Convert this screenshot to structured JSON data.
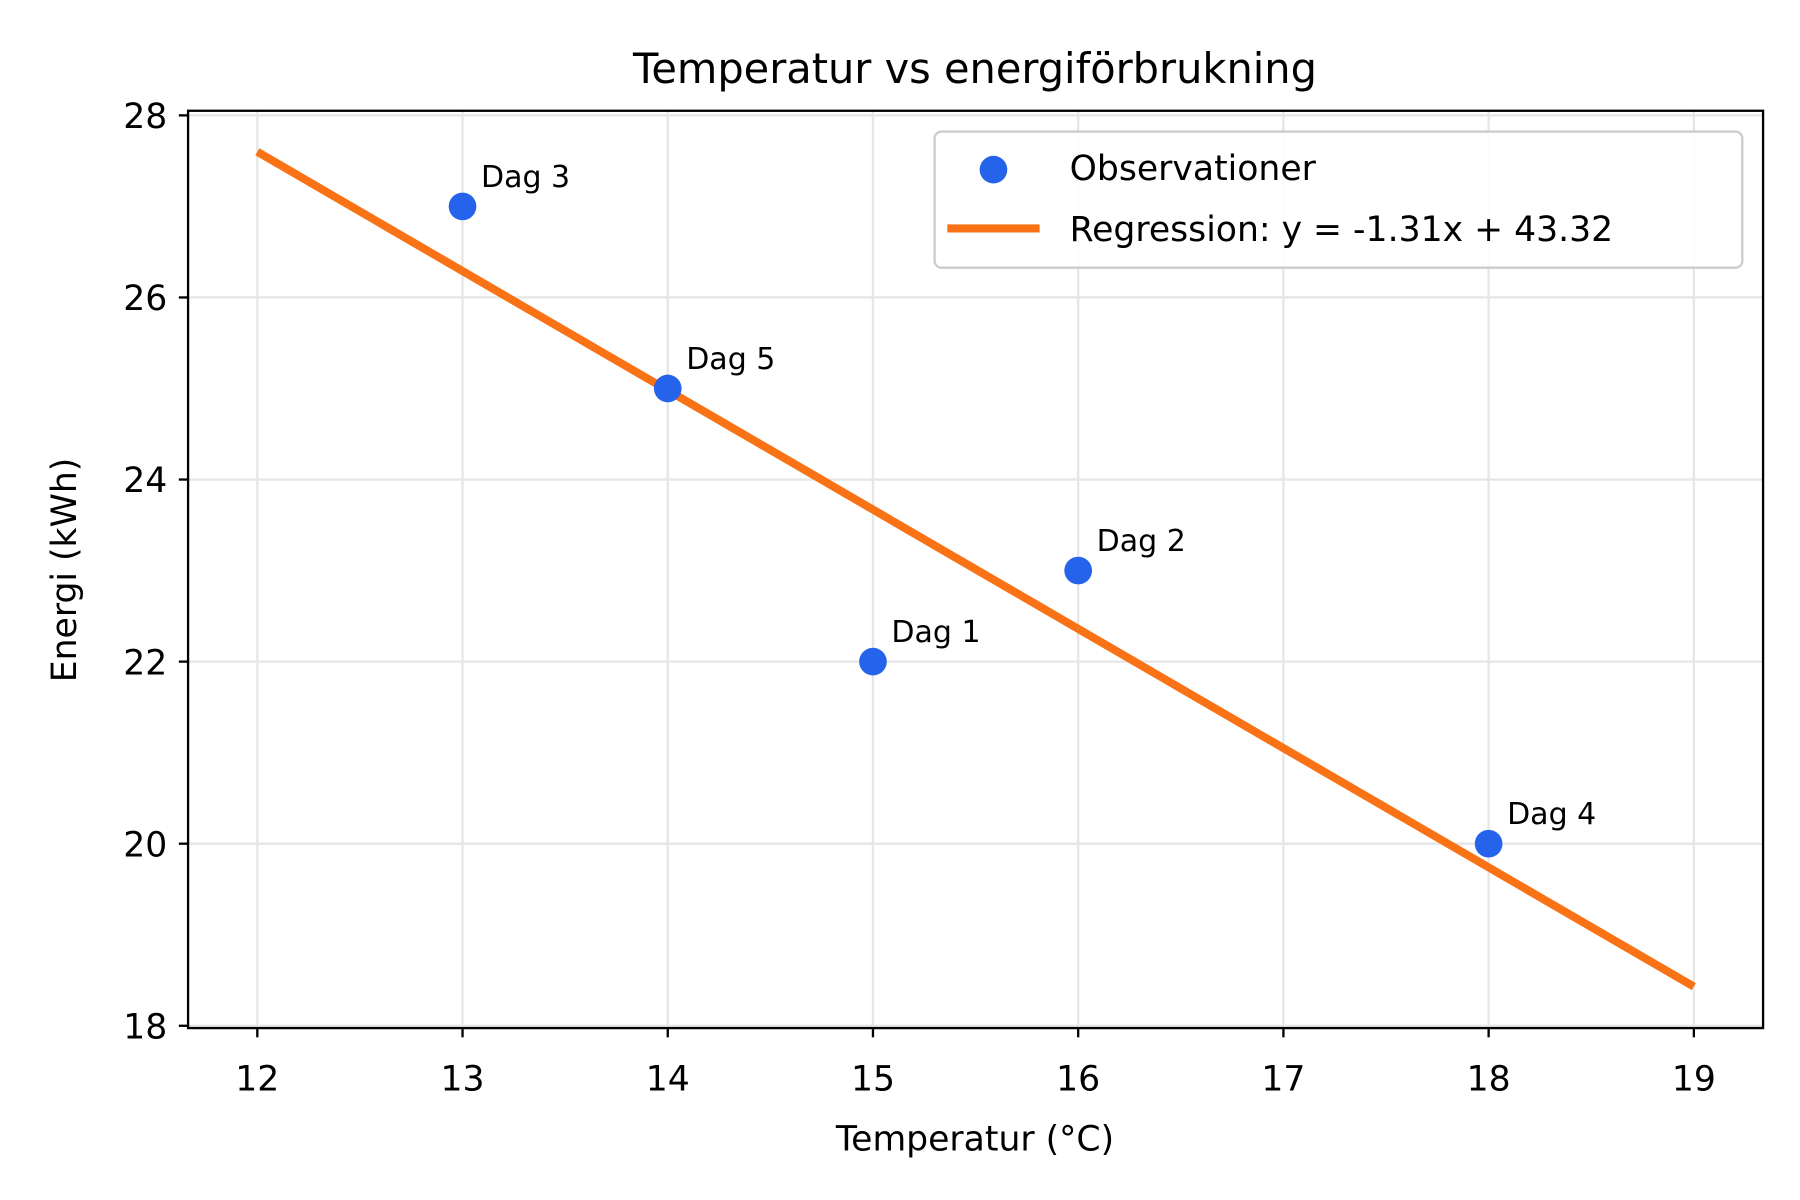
{
  "chart_data": {
    "type": "scatter",
    "title": "Temperatur vs energiförbrukning",
    "xlabel": "Temperatur (°C)",
    "ylabel": "Energi (kWh)",
    "xlim": [
      11.65,
      19.35
    ],
    "ylim": [
      17.95,
      28.05
    ],
    "xticks": [
      12,
      13,
      14,
      15,
      16,
      17,
      18,
      19
    ],
    "yticks": [
      18,
      20,
      22,
      24,
      26,
      28
    ],
    "grid": true,
    "legend_position": "top-right",
    "series": [
      {
        "name": "Observationer",
        "type": "scatter",
        "color": "#2563eb",
        "points": [
          {
            "x": 15,
            "y": 22,
            "label": "Dag 1"
          },
          {
            "x": 16,
            "y": 23,
            "label": "Dag 2"
          },
          {
            "x": 13,
            "y": 27,
            "label": "Dag 3"
          },
          {
            "x": 18,
            "y": 20,
            "label": "Dag 4"
          },
          {
            "x": 14,
            "y": 25,
            "label": "Dag 5"
          }
        ]
      },
      {
        "name": "Regression: y = -1.31x + 43.32",
        "type": "line",
        "color": "#f97316",
        "slope": -1.31,
        "intercept": 43.32,
        "x_range": [
          12,
          19
        ]
      }
    ]
  }
}
